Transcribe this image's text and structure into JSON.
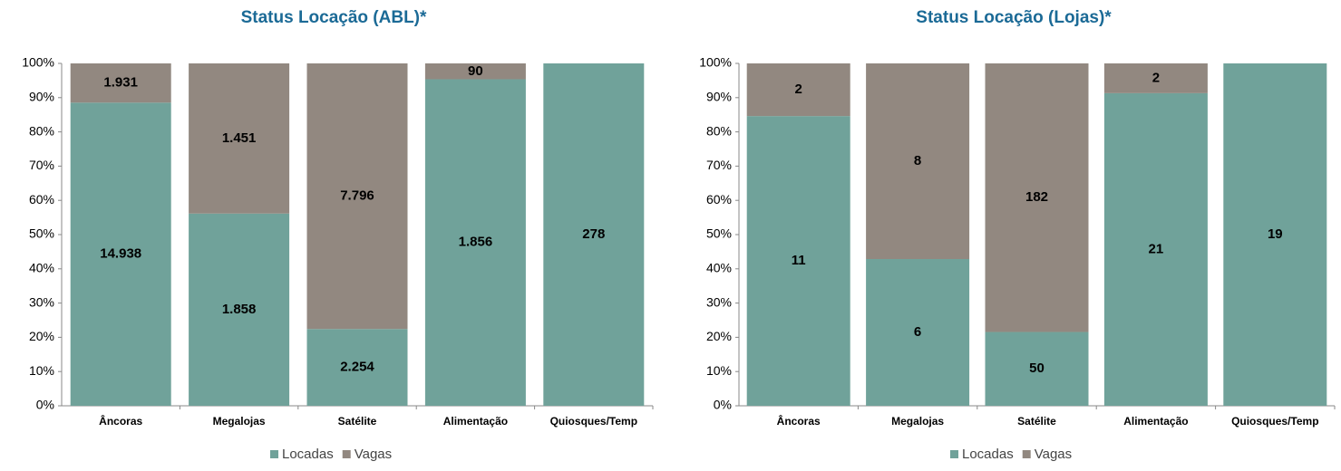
{
  "chart_data": [
    {
      "type": "bar",
      "stacking": "percent",
      "title": "Status Locação (ABL)*",
      "categories": [
        "Âncoras",
        "Megalojas",
        "Satélite",
        "Alimentação",
        "Quiosques/Temp"
      ],
      "series": [
        {
          "name": "Locadas",
          "color": "#70a29a",
          "values": [
            14938,
            1858,
            2254,
            1856,
            278
          ],
          "value_labels": [
            "14.938",
            "1.858",
            "2.254",
            "1.856",
            "278"
          ]
        },
        {
          "name": "Vagas",
          "color": "#928880",
          "values": [
            1931,
            1451,
            7796,
            90,
            null
          ],
          "value_labels": [
            "1.931",
            "1.451",
            "7.796",
            "90",
            null
          ]
        }
      ],
      "ylim": [
        0,
        100
      ],
      "yticks": [
        {
          "value": 0,
          "label": "0%"
        },
        {
          "value": 10,
          "label": "10%"
        },
        {
          "value": 20,
          "label": "20%"
        },
        {
          "value": 30,
          "label": "30%"
        },
        {
          "value": 40,
          "label": "40%"
        },
        {
          "value": 50,
          "label": "50%"
        },
        {
          "value": 60,
          "label": "60%"
        },
        {
          "value": 70,
          "label": "70%"
        },
        {
          "value": 80,
          "label": "80%"
        },
        {
          "value": 90,
          "label": "90%"
        },
        {
          "value": 100,
          "label": "100%"
        }
      ],
      "legend": "bottom"
    },
    {
      "type": "bar",
      "stacking": "percent",
      "title": "Status Locação (Lojas)*",
      "categories": [
        "Âncoras",
        "Megalojas",
        "Satélite",
        "Alimentação",
        "Quiosques/Temp"
      ],
      "series": [
        {
          "name": "Locadas",
          "color": "#70a29a",
          "values": [
            11,
            6,
            50,
            21,
            19
          ]
        },
        {
          "name": "Vagas",
          "color": "#928880",
          "values": [
            2,
            8,
            182,
            2,
            null
          ]
        }
      ],
      "ylim": [
        0,
        100
      ],
      "yticks": [
        {
          "value": 0,
          "label": "0%"
        },
        {
          "value": 10,
          "label": "10%"
        },
        {
          "value": 20,
          "label": "20%"
        },
        {
          "value": 30,
          "label": "30%"
        },
        {
          "value": 40,
          "label": "40%"
        },
        {
          "value": 50,
          "label": "50%"
        },
        {
          "value": 60,
          "label": "60%"
        },
        {
          "value": 70,
          "label": "70%"
        },
        {
          "value": 80,
          "label": "80%"
        },
        {
          "value": 90,
          "label": "90%"
        },
        {
          "value": 100,
          "label": "100%"
        }
      ],
      "legend": "bottom"
    }
  ]
}
